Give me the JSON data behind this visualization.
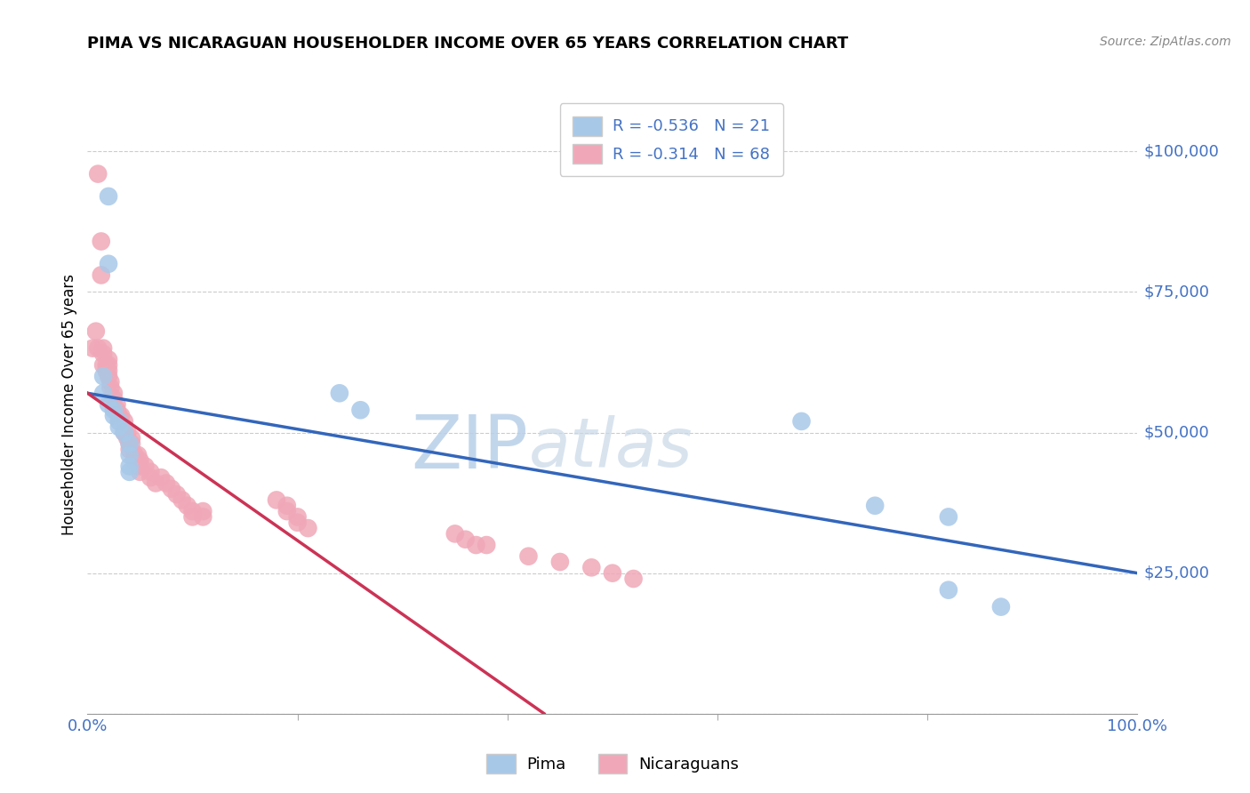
{
  "title": "PIMA VS NICARAGUAN HOUSEHOLDER INCOME OVER 65 YEARS CORRELATION CHART",
  "source": "Source: ZipAtlas.com",
  "ylabel": "Householder Income Over 65 years",
  "xlim": [
    0.0,
    1.0
  ],
  "ylim": [
    0,
    110000
  ],
  "yticks": [
    0,
    25000,
    50000,
    75000,
    100000
  ],
  "ytick_labels": [
    "",
    "$25,000",
    "$50,000",
    "$75,000",
    "$100,000"
  ],
  "xtick_positions": [
    0.0,
    1.0
  ],
  "xtick_labels": [
    "0.0%",
    "100.0%"
  ],
  "legend_pima_R": "-0.536",
  "legend_pima_N": "21",
  "legend_nic_R": "-0.314",
  "legend_nic_N": "68",
  "pima_color": "#a8c8e8",
  "nic_color": "#f0a8b8",
  "pima_line_color": "#3366bb",
  "nic_line_color": "#cc3355",
  "pima_x": [
    0.02,
    0.02,
    0.015,
    0.015,
    0.02,
    0.025,
    0.025,
    0.03,
    0.03,
    0.035,
    0.04,
    0.04,
    0.04,
    0.04,
    0.24,
    0.26,
    0.68,
    0.75,
    0.82,
    0.82,
    0.87
  ],
  "pima_y": [
    92000,
    80000,
    60000,
    57000,
    55000,
    54000,
    53000,
    52000,
    51000,
    50000,
    48000,
    46000,
    44000,
    43000,
    57000,
    54000,
    52000,
    37000,
    35000,
    22000,
    19000
  ],
  "nic_x": [
    0.005,
    0.008,
    0.01,
    0.01,
    0.013,
    0.013,
    0.015,
    0.015,
    0.015,
    0.018,
    0.018,
    0.02,
    0.02,
    0.02,
    0.02,
    0.022,
    0.022,
    0.025,
    0.025,
    0.028,
    0.028,
    0.03,
    0.03,
    0.032,
    0.035,
    0.035,
    0.035,
    0.038,
    0.038,
    0.04,
    0.04,
    0.042,
    0.042,
    0.045,
    0.045,
    0.048,
    0.05,
    0.05,
    0.05,
    0.055,
    0.06,
    0.06,
    0.065,
    0.07,
    0.075,
    0.08,
    0.085,
    0.09,
    0.095,
    0.1,
    0.1,
    0.11,
    0.11,
    0.18,
    0.19,
    0.19,
    0.2,
    0.2,
    0.21,
    0.35,
    0.36,
    0.37,
    0.38,
    0.42,
    0.45,
    0.48,
    0.5,
    0.52
  ],
  "nic_y": [
    65000,
    68000,
    96000,
    65000,
    84000,
    78000,
    65000,
    64000,
    62000,
    62000,
    61000,
    63000,
    62000,
    61000,
    60000,
    59000,
    58000,
    57000,
    56000,
    55000,
    54000,
    53000,
    52000,
    53000,
    52000,
    51000,
    50000,
    49000,
    50000,
    48000,
    47000,
    49000,
    48000,
    46000,
    45000,
    46000,
    45000,
    44000,
    43000,
    44000,
    43000,
    42000,
    41000,
    42000,
    41000,
    40000,
    39000,
    38000,
    37000,
    36000,
    35000,
    36000,
    35000,
    38000,
    37000,
    36000,
    35000,
    34000,
    33000,
    32000,
    31000,
    30000,
    30000,
    28000,
    27000,
    26000,
    25000,
    24000
  ]
}
